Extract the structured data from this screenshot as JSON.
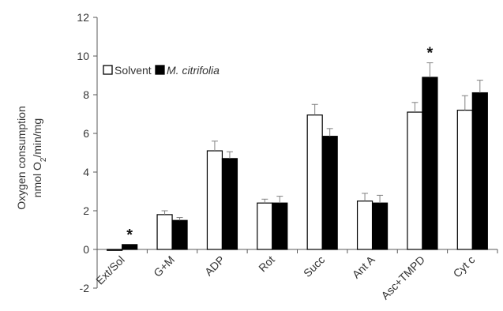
{
  "chart_data": {
    "type": "bar",
    "categories": [
      "Ext/Sol",
      "G+M",
      "ADP",
      "Rot",
      "Succ",
      "Ant A",
      "Asc+TMPD",
      "Cyt c"
    ],
    "series": [
      {
        "name": "Solvent",
        "values": [
          -0.05,
          1.8,
          5.1,
          2.4,
          6.95,
          2.5,
          7.1,
          7.2
        ],
        "errors": [
          0.0,
          0.2,
          0.5,
          0.2,
          0.55,
          0.4,
          0.5,
          0.75
        ],
        "color": "#ffffff",
        "stroke": "#000000"
      },
      {
        "name": "M. citrifolia",
        "values": [
          0.25,
          1.5,
          4.7,
          2.4,
          5.85,
          2.4,
          8.9,
          8.1
        ],
        "errors": [
          0.0,
          0.15,
          0.35,
          0.35,
          0.4,
          0.4,
          0.75,
          0.65
        ],
        "color": "#000000",
        "stroke": "#000000"
      }
    ],
    "significance": [
      "*",
      "",
      "",
      "",
      "",
      "",
      "*",
      ""
    ],
    "ylabel_line1": "Oxygen consumption",
    "ylabel_line2_prefix": "nmol O",
    "ylabel_line2_sub": "2",
    "ylabel_line2_suffix": "/min/mg",
    "xlabel": "",
    "ylim": [
      -2,
      12
    ],
    "yticks": [
      -2,
      0,
      2,
      4,
      6,
      8,
      10,
      12
    ],
    "grid": false,
    "legend": "top-left"
  }
}
